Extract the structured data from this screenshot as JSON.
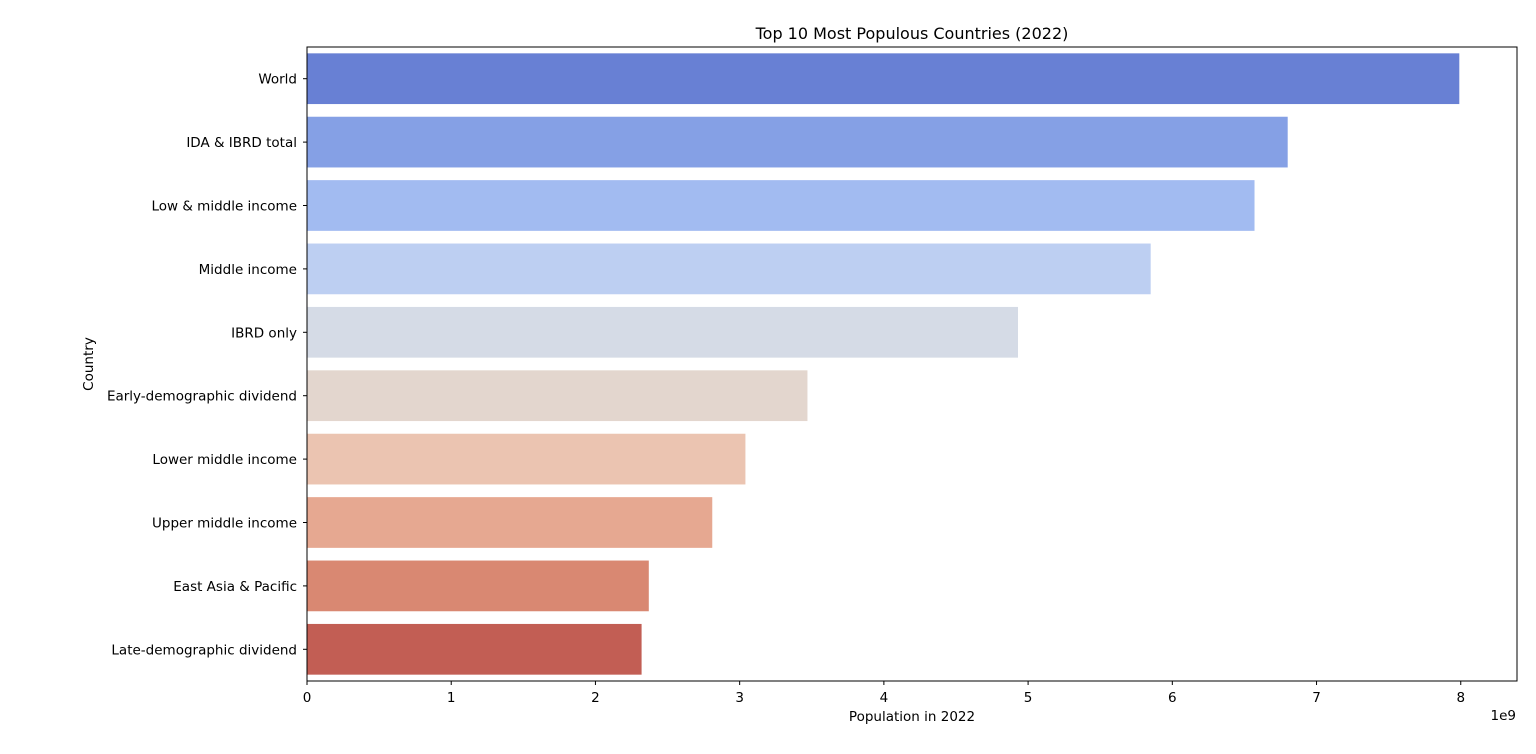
{
  "chart_data": {
    "type": "bar",
    "orientation": "horizontal",
    "title": "Top 10 Most Populous Countries (2022)",
    "xlabel": "Population in 2022",
    "ylabel": "Country",
    "x_offset_label": "1e9",
    "categories": [
      "World",
      "IDA & IBRD total",
      "Low & middle income",
      "Middle income",
      "IBRD only",
      "Early-demographic dividend",
      "Lower middle income",
      "Upper middle income",
      "East Asia & Pacific",
      "Late-demographic dividend"
    ],
    "values": [
      7990000000,
      6800000000,
      6570000000,
      5850000000,
      4930000000,
      3470000000,
      3040000000,
      2810000000,
      2370000000,
      2320000000
    ],
    "colors": [
      "#6880d4",
      "#85a0e5",
      "#a2bbf1",
      "#bdcff2",
      "#d5dbe6",
      "#e3d6ce",
      "#ebc4b1",
      "#e6a891",
      "#d98872",
      "#c25e54"
    ],
    "xlim": [
      0,
      8390000000
    ],
    "x_ticks": [
      0,
      1,
      2,
      3,
      4,
      5,
      6,
      7,
      8
    ],
    "x_tick_scale": 1000000000,
    "grid": false,
    "legend": "none"
  }
}
